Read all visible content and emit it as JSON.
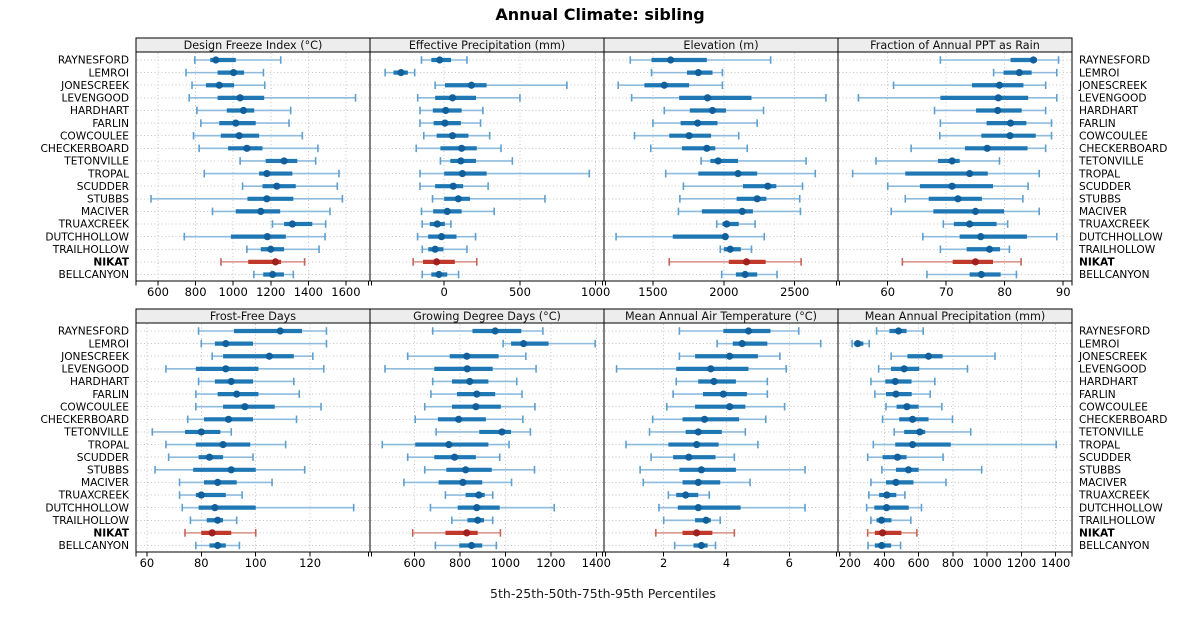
{
  "title": "Annual Climate: sibling",
  "caption": "5th-25th-50th-75th-95th Percentiles",
  "colors": {
    "blue_whisker": "#8fbcdd",
    "blue_cap": "#5f9fcd",
    "blue_box": "#1f77b4",
    "blue_dot": "#11609c",
    "red_whisker": "#d98e85",
    "red_cap": "#c86257",
    "red_box": "#c0392b",
    "red_dot": "#a02020",
    "strip_bg": "#ededed",
    "grid": "#c6c6c6",
    "panel_border": "#000000"
  },
  "chart_data": {
    "type": "trellis-percentile-dotplot",
    "title": "Annual Climate: sibling",
    "caption": "5th-25th-50th-75th-95th Percentiles",
    "percentile_labels": [
      "5th",
      "25th",
      "50th",
      "75th",
      "95th"
    ],
    "highlight_station": "NIKAT",
    "rows": [
      "RAYNESFORD",
      "LEMROI",
      "JONESCREEK",
      "LEVENGOOD",
      "HARDHART",
      "FARLIN",
      "COWCOULEE",
      "CHECKERBOARD",
      "TETONVILLE",
      "TROPAL",
      "SCUDDER",
      "STUBBS",
      "MACIVER",
      "TRUAXCREEK",
      "DUTCHHOLLOW",
      "TRAILHOLLOW",
      "NIKAT",
      "BELLCANYON"
    ],
    "panels": [
      {
        "title": "Design Freeze Index (°C)",
        "row": 0,
        "col": 0,
        "domain": [
          483,
          1728
        ],
        "ticks": [
          600,
          800,
          1000,
          1200,
          1400,
          1600
        ],
        "series": [
          [
            796,
            878,
            908,
            1014,
            1253
          ],
          [
            749,
            917,
            1002,
            1058,
            1161
          ],
          [
            781,
            855,
            926,
            1005,
            1168
          ],
          [
            766,
            917,
            1037,
            1165,
            1651
          ],
          [
            807,
            966,
            1055,
            1112,
            1306
          ],
          [
            828,
            926,
            1014,
            1120,
            1297
          ],
          [
            789,
            934,
            1032,
            1138,
            1368
          ],
          [
            819,
            973,
            1073,
            1156,
            1451
          ],
          [
            1037,
            1173,
            1271,
            1341,
            1439
          ],
          [
            846,
            1138,
            1179,
            1315,
            1563
          ],
          [
            1050,
            1156,
            1232,
            1333,
            1554
          ],
          [
            563,
            1076,
            1179,
            1320,
            1581
          ],
          [
            890,
            1014,
            1147,
            1250,
            1515
          ],
          [
            1209,
            1271,
            1315,
            1421,
            1492
          ],
          [
            740,
            988,
            1182,
            1280,
            1489
          ],
          [
            1073,
            1147,
            1200,
            1271,
            1457
          ],
          [
            935,
            1080,
            1225,
            1255,
            1380
          ],
          [
            1110,
            1160,
            1210,
            1270,
            1320
          ]
        ]
      },
      {
        "title": "Effective Precipitation (mm)",
        "row": 0,
        "col": 1,
        "domain": [
          -490,
          1055
        ],
        "ticks": [
          0,
          500,
          1000
        ],
        "series": [
          [
            -150,
            -85,
            -30,
            45,
            150
          ],
          [
            -390,
            -335,
            -285,
            -240,
            -195
          ],
          [
            -60,
            5,
            180,
            280,
            810
          ],
          [
            -175,
            -60,
            55,
            210,
            500
          ],
          [
            -160,
            -75,
            10,
            115,
            255
          ],
          [
            -160,
            -70,
            5,
            110,
            240
          ],
          [
            -135,
            -50,
            55,
            160,
            300
          ],
          [
            -185,
            -25,
            115,
            215,
            375
          ],
          [
            -25,
            40,
            110,
            210,
            450
          ],
          [
            -160,
            0,
            120,
            280,
            958
          ],
          [
            -160,
            -60,
            60,
            125,
            290
          ],
          [
            -77,
            0,
            93,
            170,
            665
          ],
          [
            -150,
            -73,
            20,
            115,
            330
          ],
          [
            -145,
            -95,
            -46,
            4,
            44
          ],
          [
            -176,
            -106,
            -18,
            81,
            207
          ],
          [
            -145,
            -105,
            -60,
            -5,
            150
          ],
          [
            -205,
            -140,
            -50,
            70,
            215
          ],
          [
            -145,
            -85,
            -35,
            20,
            95
          ]
        ]
      },
      {
        "title": "Elevation (m)",
        "row": 0,
        "col": 2,
        "domain": [
          1155,
          2805
        ],
        "ticks": [
          1500,
          2000,
          2500
        ],
        "series": [
          [
            1340,
            1490,
            1625,
            1880,
            2330
          ],
          [
            1490,
            1740,
            1820,
            1920,
            1990
          ],
          [
            1255,
            1440,
            1580,
            1755,
            1990
          ],
          [
            1350,
            1685,
            1885,
            2195,
            2720
          ],
          [
            1580,
            1760,
            1920,
            2015,
            2280
          ],
          [
            1500,
            1695,
            1815,
            1955,
            2235
          ],
          [
            1370,
            1615,
            1755,
            1910,
            2105
          ],
          [
            1485,
            1705,
            1880,
            1940,
            2165
          ],
          [
            1840,
            1905,
            1960,
            2100,
            2580
          ],
          [
            1590,
            1820,
            2100,
            2235,
            2645
          ],
          [
            1715,
            2135,
            2310,
            2370,
            2555
          ],
          [
            1690,
            2090,
            2235,
            2300,
            2535
          ],
          [
            1680,
            1845,
            2130,
            2205,
            2540
          ],
          [
            1950,
            1990,
            2020,
            2105,
            2220
          ],
          [
            1240,
            1640,
            2010,
            2020,
            2285
          ],
          [
            1975,
            2000,
            2045,
            2120,
            2195
          ],
          [
            1615,
            2035,
            2160,
            2295,
            2545
          ],
          [
            1985,
            2085,
            2150,
            2235,
            2375
          ]
        ]
      },
      {
        "title": "Fraction of Annual PPT as Rain",
        "row": 0,
        "col": 3,
        "domain": [
          51.5,
          91.5
        ],
        "ticks": [
          60,
          70,
          80,
          90
        ],
        "series": [
          [
            69,
            81,
            84.9,
            85.5,
            89.2
          ],
          [
            78.1,
            79.8,
            82.5,
            84.6,
            88.9
          ],
          [
            61,
            74.4,
            79.1,
            83.2,
            87
          ],
          [
            55,
            69,
            78.9,
            84,
            88.9
          ],
          [
            68,
            75.1,
            78.8,
            82.9,
            87
          ],
          [
            69,
            76.9,
            81,
            83.7,
            88
          ],
          [
            68.9,
            76,
            80.9,
            85.3,
            88
          ],
          [
            64,
            73.2,
            77,
            83.9,
            87
          ],
          [
            58,
            68.6,
            71,
            72.3,
            79.1
          ],
          [
            54,
            63,
            74,
            77.1,
            85.9
          ],
          [
            60,
            65.5,
            71,
            78,
            84
          ],
          [
            63,
            67,
            72,
            76.1,
            83.1
          ],
          [
            60.6,
            67.8,
            75,
            79.9,
            85.9
          ],
          [
            69.5,
            71.3,
            74,
            78.6,
            80.5
          ],
          [
            66,
            72.3,
            75.9,
            83.8,
            88.9
          ],
          [
            69,
            73.5,
            77.4,
            79.2,
            80.8
          ],
          [
            62.5,
            71.1,
            75,
            78,
            82.8
          ],
          [
            66.7,
            74,
            76,
            79.3,
            82
          ]
        ]
      },
      {
        "title": "Frost-Free Days",
        "row": 1,
        "col": 0,
        "domain": [
          56,
          142
        ],
        "ticks": [
          60,
          80,
          100,
          120
        ],
        "series": [
          [
            79,
            92,
            109,
            117,
            126
          ],
          [
            80,
            85,
            89,
            99,
            126
          ],
          [
            84,
            88,
            105,
            114,
            121
          ],
          [
            67,
            78,
            89,
            101,
            125
          ],
          [
            79,
            85,
            91,
            99,
            114
          ],
          [
            78,
            86,
            93,
            101,
            116
          ],
          [
            78,
            88,
            96,
            107,
            124
          ],
          [
            75,
            81,
            90,
            99,
            115
          ],
          [
            62,
            74,
            80,
            87,
            91
          ],
          [
            67,
            78,
            88,
            98,
            111
          ],
          [
            68,
            79,
            83,
            88,
            99
          ],
          [
            63,
            77,
            91,
            100,
            118
          ],
          [
            72,
            81,
            86,
            93,
            106
          ],
          [
            72,
            78,
            80,
            89,
            95
          ],
          [
            73,
            79,
            85,
            100,
            136
          ],
          [
            76,
            82,
            86,
            88,
            93
          ],
          [
            74,
            80,
            84,
            91,
            100
          ],
          [
            78,
            83,
            86,
            89,
            94
          ]
        ]
      },
      {
        "title": "Growing Degree Days (°C)",
        "row": 1,
        "col": 1,
        "domain": [
          404,
          1434
        ],
        "ticks": [
          600,
          800,
          1000,
          1200,
          1400
        ],
        "series": [
          [
            680,
            855,
            955,
            1070,
            1165
          ],
          [
            990,
            1025,
            1080,
            1190,
            1395
          ],
          [
            570,
            755,
            830,
            970,
            1090
          ],
          [
            470,
            687,
            832,
            944,
            1135
          ],
          [
            680,
            765,
            843,
            925,
            1050
          ],
          [
            672,
            787,
            874,
            955,
            1073
          ],
          [
            645,
            765,
            870,
            980,
            1130
          ],
          [
            603,
            703,
            794,
            914,
            1077
          ],
          [
            695,
            885,
            985,
            1025,
            1110
          ],
          [
            458,
            603,
            751,
            925,
            1016
          ],
          [
            570,
            687,
            776,
            870,
            975
          ],
          [
            645,
            740,
            825,
            940,
            1128
          ],
          [
            553,
            706,
            813,
            898,
            1027
          ],
          [
            736,
            825,
            883,
            909,
            944
          ],
          [
            670,
            790,
            874,
            975,
            1215
          ],
          [
            764,
            833,
            878,
            906,
            944
          ],
          [
            592,
            736,
            830,
            878,
            978
          ],
          [
            692,
            797,
            851,
            898,
            960
          ]
        ]
      },
      {
        "title": "Mean Annual Air Temperature (°C)",
        "row": 1,
        "col": 2,
        "domain": [
          0.1,
          7.55
        ],
        "ticks": [
          2,
          4,
          6
        ],
        "series": [
          [
            2.5,
            3.9,
            4.7,
            5.4,
            6.3
          ],
          [
            3.7,
            4.2,
            4.5,
            5.3,
            7.0
          ],
          [
            2.5,
            3.0,
            4.1,
            5.0,
            5.7
          ],
          [
            0.5,
            2.4,
            3.5,
            4.7,
            5.9
          ],
          [
            2.4,
            3.1,
            3.6,
            4.3,
            5.3
          ],
          [
            2.3,
            3.25,
            3.9,
            4.65,
            5.3
          ],
          [
            2.1,
            3.0,
            4.1,
            4.6,
            5.85
          ],
          [
            1.65,
            2.6,
            3.3,
            4.4,
            5.25
          ],
          [
            1.55,
            2.7,
            3.1,
            3.85,
            4.6
          ],
          [
            0.8,
            2.15,
            3.05,
            3.75,
            5.0
          ],
          [
            1.6,
            2.3,
            2.8,
            3.65,
            4.25
          ],
          [
            1.25,
            2.5,
            3.2,
            4.3,
            6.5
          ],
          [
            1.35,
            2.6,
            3.1,
            3.8,
            4.75
          ],
          [
            2.15,
            2.4,
            2.7,
            3.1,
            3.45
          ],
          [
            1.85,
            2.45,
            3.1,
            4.45,
            6.5
          ],
          [
            2.0,
            3.0,
            3.35,
            3.5,
            3.8
          ],
          [
            1.75,
            2.6,
            3.05,
            3.55,
            4.25
          ],
          [
            2.35,
            2.95,
            3.2,
            3.4,
            3.65
          ]
        ]
      },
      {
        "title": "Mean Annual Precipitation (mm)",
        "row": 1,
        "col": 3,
        "domain": [
          130,
          1495
        ],
        "ticks": [
          200,
          400,
          600,
          800,
          1000,
          1200,
          1400
        ],
        "series": [
          [
            355,
            430,
            483,
            530,
            627
          ],
          [
            212,
            225,
            245,
            278,
            312
          ],
          [
            440,
            535,
            658,
            740,
            1046
          ],
          [
            367,
            439,
            516,
            604,
            885
          ],
          [
            322,
            406,
            464,
            559,
            695
          ],
          [
            345,
            410,
            468,
            560,
            668
          ],
          [
            410,
            472,
            532,
            600,
            736
          ],
          [
            390,
            487,
            565,
            658,
            798
          ],
          [
            458,
            516,
            607,
            639,
            904
          ],
          [
            336,
            464,
            565,
            788,
            1403
          ],
          [
            303,
            390,
            477,
            530,
            743
          ],
          [
            386,
            468,
            541,
            600,
            968
          ],
          [
            322,
            410,
            468,
            570,
            760
          ],
          [
            310,
            370,
            415,
            470,
            520
          ],
          [
            297,
            342,
            413,
            543,
            617
          ],
          [
            322,
            355,
            384,
            442,
            555
          ],
          [
            303,
            345,
            390,
            500,
            590
          ],
          [
            305,
            345,
            385,
            440,
            495
          ]
        ]
      }
    ]
  }
}
